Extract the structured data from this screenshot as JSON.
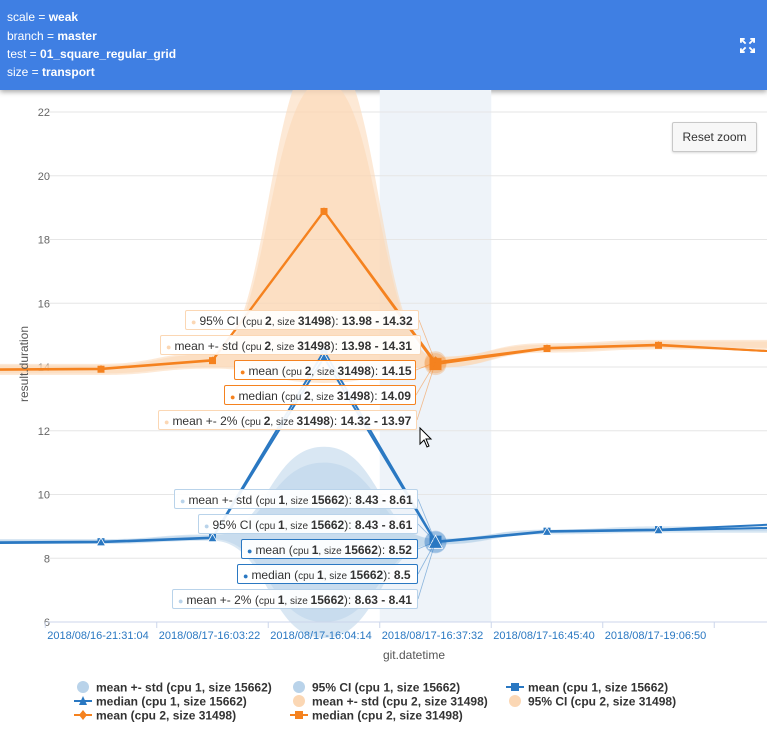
{
  "header": {
    "lines": [
      {
        "key": "scale = ",
        "value": "weak"
      },
      {
        "key": "branch = ",
        "value": "master"
      },
      {
        "key": "test = ",
        "value": "01_square_regular_grid"
      },
      {
        "key": "size = ",
        "value": "transport"
      }
    ],
    "expand_icon": "fullscreen-icon"
  },
  "reset_zoom": "Reset zoom",
  "colors": {
    "blue": "#2a78c2",
    "orange": "#f5821f",
    "blue_band": "#b9d3ea",
    "orange_band": "#fbd7b4",
    "highlight": "#eef3f9"
  },
  "chart_data": {
    "type": "line",
    "title": "",
    "xlabel": "git.datetime",
    "ylabel": "result.duration",
    "ylim": [
      6,
      22
    ],
    "yticks": [
      6,
      8,
      10,
      12,
      14,
      16,
      18,
      20,
      22
    ],
    "categories": [
      "2018/08/16-21:31:04",
      "2018/08/17-16:03:22",
      "2018/08/17-16:04:14",
      "2018/08/17-16:37:32",
      "2018/08/17-16:45:40",
      "2018/08/17-19:06:50"
    ],
    "highlighted_category": "2018/08/17-16:37:32",
    "series": [
      {
        "name": "mean +- std (cpu 1, size 15662)",
        "kind": "band",
        "color": "#b9d3ea",
        "lower": [
          8.45,
          8.55,
          5.5,
          8.43,
          8.75,
          8.8
        ],
        "upper": [
          8.6,
          8.75,
          11.5,
          8.61,
          8.9,
          9.0
        ]
      },
      {
        "name": "95% CI (cpu 1, size 15662)",
        "kind": "band",
        "color": "#b9d3ea",
        "lower": [
          8.47,
          8.6,
          6.0,
          8.43,
          8.8,
          8.85
        ],
        "upper": [
          8.58,
          8.72,
          11.0,
          8.61,
          8.88,
          8.95
        ]
      },
      {
        "name": "mean (cpu 1, size 15662)",
        "kind": "line",
        "marker": "square",
        "color": "#2a78c2",
        "values": [
          8.52,
          8.65,
          14.5,
          8.52,
          8.85,
          8.9
        ]
      },
      {
        "name": "median (cpu 1, size 15662)",
        "kind": "line",
        "marker": "triangle",
        "color": "#2a78c2",
        "values": [
          8.5,
          8.63,
          14.3,
          8.5,
          8.83,
          8.88
        ]
      },
      {
        "name": "mean +- std (cpu 2, size 31498)",
        "kind": "band",
        "color": "#fbd7b4",
        "lower": [
          13.75,
          13.95,
          13.5,
          13.98,
          14.45,
          14.55
        ],
        "upper": [
          14.1,
          14.45,
          24.0,
          14.31,
          14.75,
          14.85
        ]
      },
      {
        "name": "95% CI (cpu 2, size 31498)",
        "kind": "band",
        "color": "#fbd7b4",
        "lower": [
          13.8,
          14.0,
          14.0,
          13.98,
          14.5,
          14.6
        ],
        "upper": [
          14.05,
          14.4,
          23.0,
          14.32,
          14.7,
          14.8
        ]
      },
      {
        "name": "mean (cpu 2, size 31498)",
        "kind": "line",
        "marker": "diamond",
        "color": "#f5821f",
        "values": [
          13.95,
          14.22,
          18.9,
          14.15,
          14.6,
          14.7
        ]
      },
      {
        "name": "median (cpu 2, size 31498)",
        "kind": "line",
        "marker": "square",
        "color": "#f5821f",
        "values": [
          13.93,
          14.2,
          18.88,
          14.09,
          14.58,
          14.68
        ]
      }
    ],
    "tail_values": {
      "cpu1_mean": 9.05,
      "cpu1_median": 8.95,
      "cpu2_mean": 14.5
    }
  },
  "tooltips": [
    {
      "label": "95% CI",
      "cpu": "2",
      "size": "31498",
      "value": "13.98 - 14.32",
      "color": "orange",
      "bold": false
    },
    {
      "label": "mean +- std",
      "cpu": "2",
      "size": "31498",
      "value": "13.98 - 14.31",
      "color": "orange",
      "bold": false
    },
    {
      "label": "mean",
      "cpu": "2",
      "size": "31498",
      "value": "14.15",
      "color": "orange",
      "bold": true
    },
    {
      "label": "median",
      "cpu": "2",
      "size": "31498",
      "value": "14.09",
      "color": "orange",
      "bold": true
    },
    {
      "label": "mean +- 2%",
      "cpu": "2",
      "size": "31498",
      "value": "14.32 - 13.97",
      "color": "orange",
      "bold": false
    },
    {
      "label": "mean +- std",
      "cpu": "1",
      "size": "15662",
      "value": "8.43 - 8.61",
      "color": "blue",
      "bold": false
    },
    {
      "label": "95% CI",
      "cpu": "1",
      "size": "15662",
      "value": "8.43 - 8.61",
      "color": "blue",
      "bold": false
    },
    {
      "label": "mean",
      "cpu": "1",
      "size": "15662",
      "value": "8.52",
      "color": "blue",
      "bold": true
    },
    {
      "label": "median",
      "cpu": "1",
      "size": "15662",
      "value": "8.5",
      "color": "blue",
      "bold": true
    },
    {
      "label": "mean +- 2%",
      "cpu": "1",
      "size": "15662",
      "value": "8.63 - 8.41",
      "color": "blue",
      "bold": false
    }
  ],
  "legend": [
    {
      "label": "mean +- std (cpu 1, size 15662)",
      "symbol": "circle",
      "color": "#b9d3ea"
    },
    {
      "label": "95% CI (cpu 1, size 15662)",
      "symbol": "circle",
      "color": "#b9d3ea"
    },
    {
      "label": "mean (cpu 1, size 15662)",
      "symbol": "line-square",
      "color": "#2a78c2"
    },
    {
      "label": "median (cpu 1, size 15662)",
      "symbol": "line-triangle",
      "color": "#2a78c2"
    },
    {
      "label": "mean +- std (cpu 2, size 31498)",
      "symbol": "circle",
      "color": "#fbd7b4"
    },
    {
      "label": "95% CI (cpu 2, size 31498)",
      "symbol": "circle",
      "color": "#fbd7b4"
    },
    {
      "label": "mean (cpu 2, size 31498)",
      "symbol": "line-diamond",
      "color": "#f5821f"
    },
    {
      "label": "median (cpu 2, size 31498)",
      "symbol": "line-square",
      "color": "#f5821f"
    }
  ]
}
